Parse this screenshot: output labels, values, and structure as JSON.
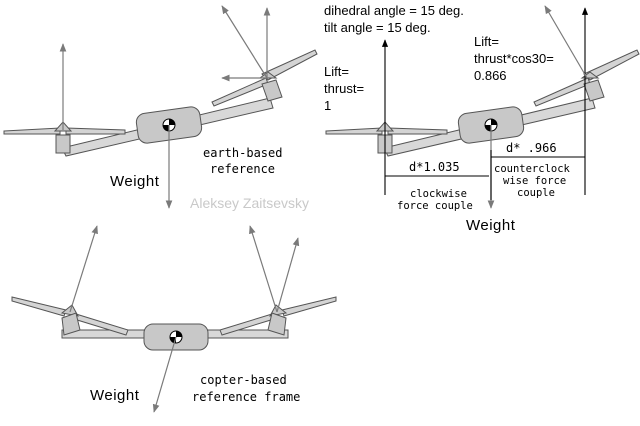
{
  "header": {
    "dihedral": "dihedral angle = 15 deg.",
    "tilt": "tilt angle = 15 deg."
  },
  "left_lift": {
    "line1": "Lift=",
    "line2": "thrust=",
    "line3": "1"
  },
  "right_lift": {
    "line1": "Lift=",
    "line2": "thrust*cos30=",
    "line3": "0.866"
  },
  "earth_label": {
    "line1": "earth-based",
    "line2": "reference"
  },
  "copter_label": {
    "line1": "copter-based",
    "line2": "reference frame"
  },
  "weight": {
    "top_left": "Weight",
    "top_right": "Weight",
    "bottom": "Weight"
  },
  "dims": {
    "left": "d*1.035",
    "right": "d* .966"
  },
  "couples": {
    "clockwise": {
      "line1": "clockwise",
      "line2": "force couple"
    },
    "counter": {
      "line1": "counterclock",
      "line2": "wise force",
      "line3": "couple"
    }
  },
  "watermark": "Aleksey Zaitsevsky"
}
